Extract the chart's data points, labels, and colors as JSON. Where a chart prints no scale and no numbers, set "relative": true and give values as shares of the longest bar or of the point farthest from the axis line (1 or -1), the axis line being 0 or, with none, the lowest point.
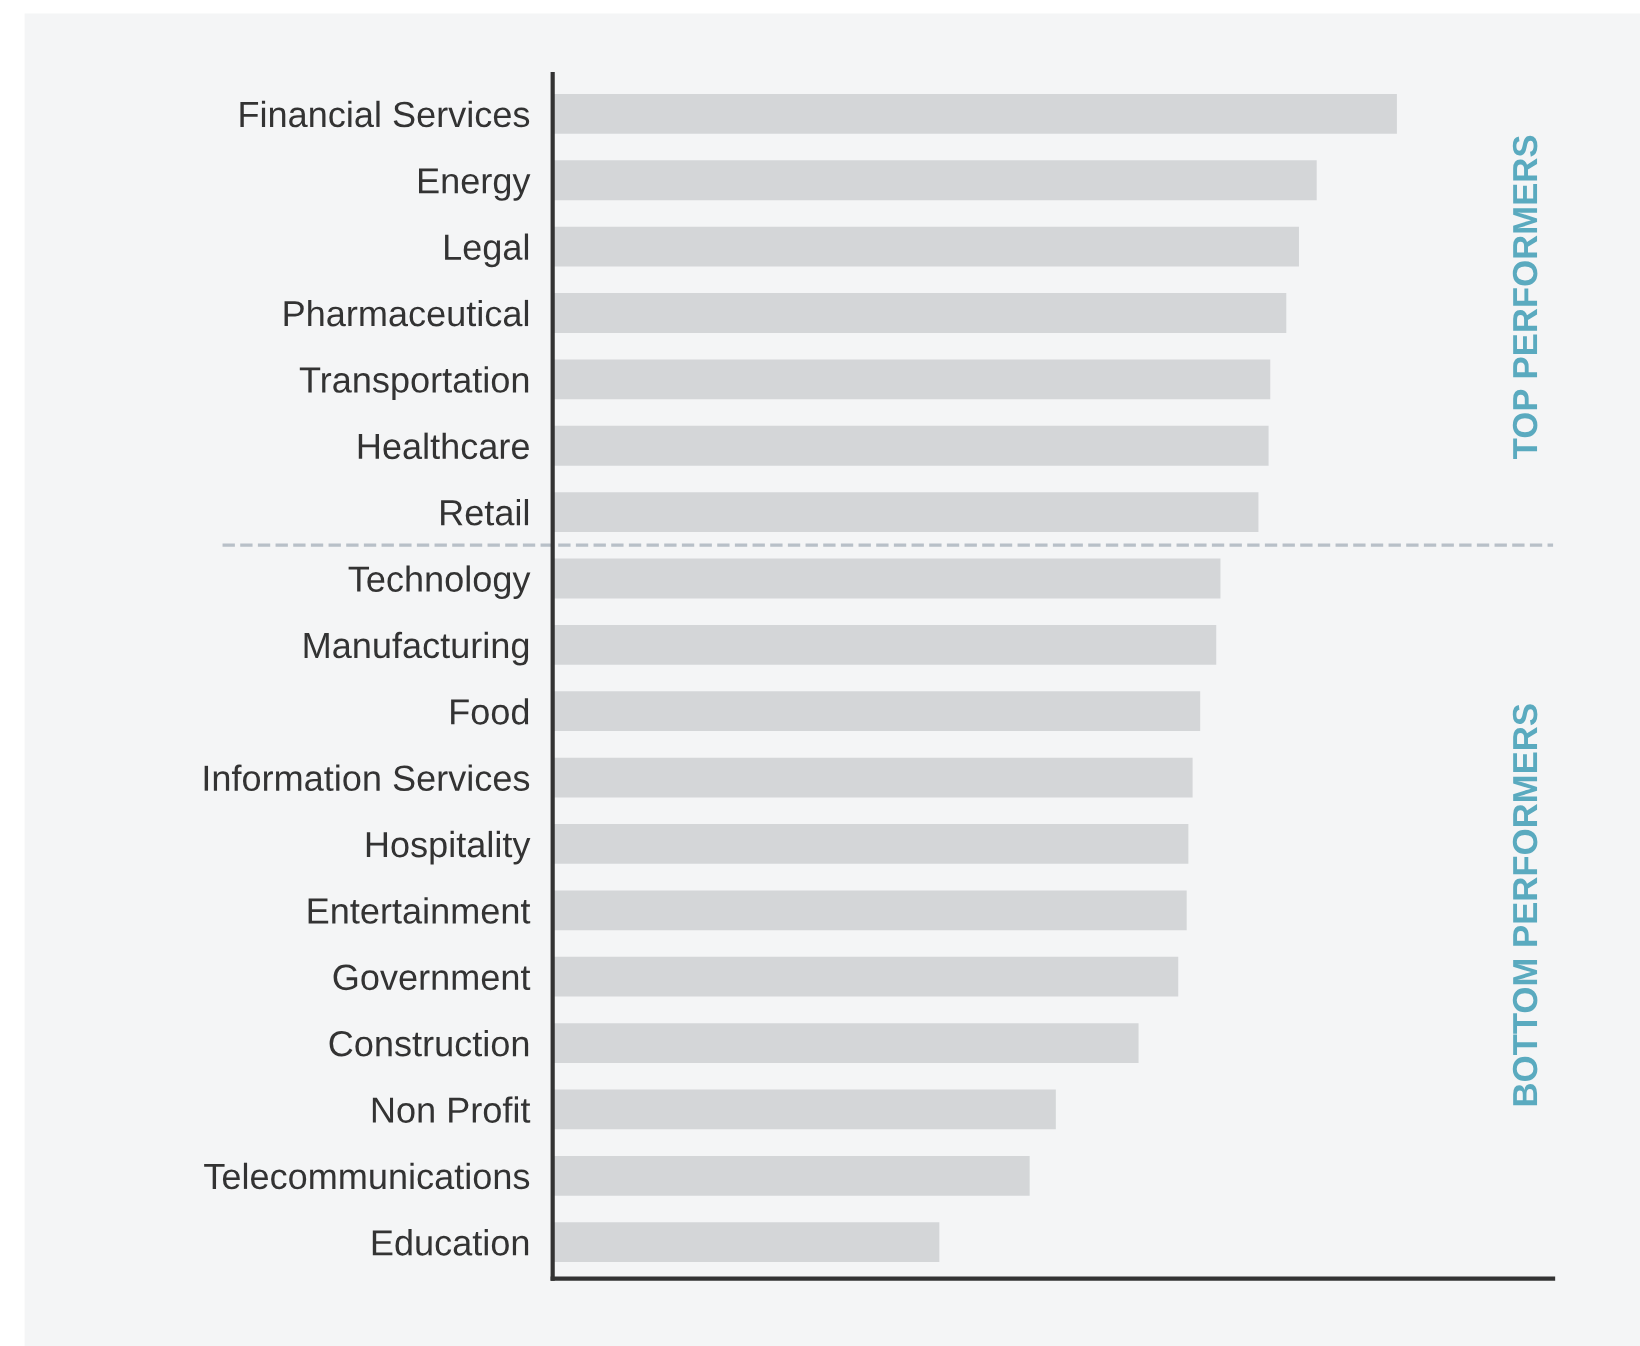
{
  "chart_data": {
    "type": "bar",
    "orientation": "horizontal",
    "relative": true,
    "categories": [
      "Financial Services",
      "Energy",
      "Legal",
      "Pharmaceutical",
      "Transportation",
      "Healthcare",
      "Retail",
      "Technology",
      "Manufacturing",
      "Food",
      "Information Services",
      "Hospitality",
      "Entertainment",
      "Government",
      "Construction",
      "Non Profit",
      "Telecommunications",
      "Education"
    ],
    "values": [
      1,
      0.905,
      0.884,
      0.869,
      0.85,
      0.848,
      0.836,
      0.791,
      0.786,
      0.767,
      0.758,
      0.753,
      0.751,
      0.741,
      0.694,
      0.596,
      0.565,
      0.458
    ],
    "color": "#d4d6d8",
    "annotations": [
      "TOP PERFORMERS",
      "BOTTOM PERFORMERS"
    ],
    "grid": false,
    "legend": false
  }
}
